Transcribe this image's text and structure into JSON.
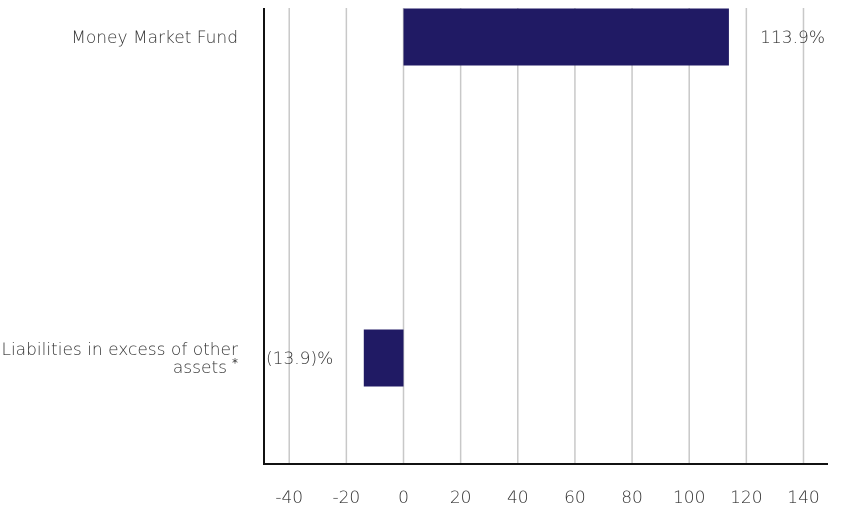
{
  "chart_data": {
    "type": "bar",
    "orientation": "horizontal",
    "categories": [
      [
        "Money Market Fund"
      ],
      [
        "Liabilities in excess of other",
        "assets"
      ]
    ],
    "category_notes": [
      "",
      "*"
    ],
    "values": [
      113.9,
      -13.9
    ],
    "data_labels": [
      "113.9%",
      "(13.9)%"
    ],
    "xlim": [
      -50,
      147
    ],
    "x_ticks": [
      -40,
      -20,
      0,
      20,
      40,
      60,
      80,
      100,
      120,
      140
    ],
    "grid": true,
    "bar_color": "#201a64",
    "grid_color": "#c8c8c8",
    "axis_color": "#111111"
  }
}
